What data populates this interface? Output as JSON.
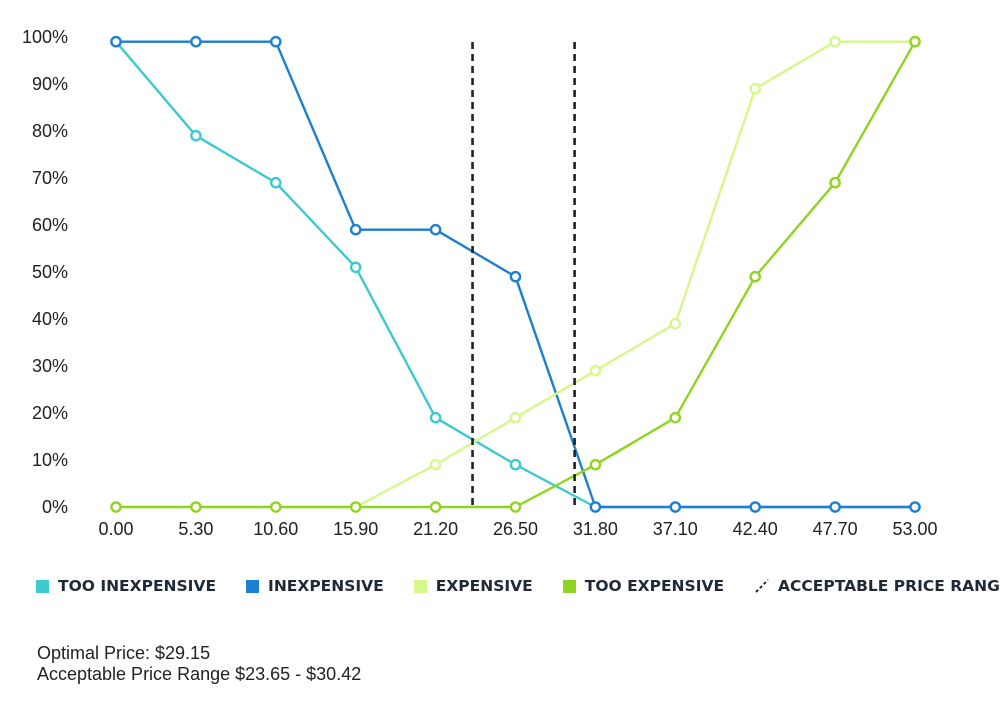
{
  "chart_data": {
    "type": "line",
    "title": "",
    "xlabel": "",
    "ylabel": "",
    "categories": [
      "0.00",
      "5.30",
      "10.60",
      "15.90",
      "21.20",
      "26.50",
      "31.80",
      "37.10",
      "42.40",
      "47.70",
      "53.00"
    ],
    "x": [
      0,
      5.3,
      10.6,
      15.9,
      21.2,
      26.5,
      31.8,
      37.1,
      42.4,
      47.7,
      53.0
    ],
    "xlim": [
      0,
      53
    ],
    "ylim": [
      0,
      100
    ],
    "y_tick_labels": [
      "0%",
      "10%",
      "20%",
      "30%",
      "40%",
      "50%",
      "60%",
      "70%",
      "80%",
      "90%",
      "100%"
    ],
    "grid": false,
    "legend_position": "bottom",
    "series": [
      {
        "name": "TOO INEXPENSIVE",
        "color": "#3cc9cf",
        "values": [
          99,
          79,
          69,
          51,
          19,
          9,
          0,
          0,
          0,
          0,
          0
        ],
        "marker_values": [
          99,
          79,
          69,
          51,
          19,
          9,
          null,
          null,
          null,
          null,
          null
        ]
      },
      {
        "name": "INEXPENSIVE",
        "color": "#1c7fd1",
        "values": [
          99,
          99,
          99,
          59,
          59,
          49,
          0,
          0,
          0,
          0,
          0
        ]
      },
      {
        "name": "EXPENSIVE",
        "color": "#d6f78c",
        "values": [
          0,
          0,
          0,
          0,
          9,
          19,
          29,
          39,
          89,
          99,
          99
        ],
        "marker_values": [
          null,
          null,
          null,
          null,
          9,
          19,
          29,
          39,
          89,
          99,
          99
        ]
      },
      {
        "name": "TOO EXPENSIVE",
        "color": "#8fd41f",
        "values": [
          0,
          0,
          0,
          0,
          0,
          0,
          9,
          19,
          49,
          69,
          99
        ]
      }
    ],
    "reference_lines": [
      {
        "x": 23.65,
        "style": "dashed",
        "color": "#222222"
      },
      {
        "x": 30.42,
        "style": "dashed",
        "color": "#222222"
      }
    ],
    "legend_acceptable_label": "ACCEPTABLE PRICE RANGE"
  },
  "notes": {
    "optimal_price": "Optimal Price: $29.15",
    "acceptable_range": "Acceptable Price Range $23.65 - $30.42"
  }
}
